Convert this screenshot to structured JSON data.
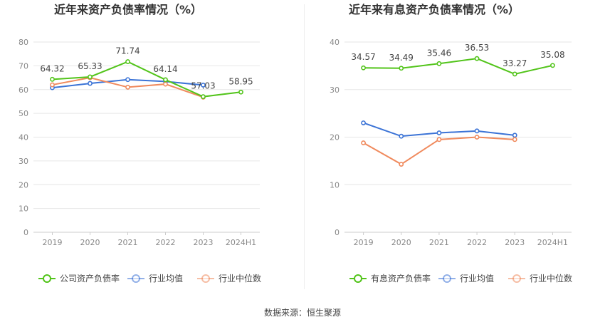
{
  "colors": {
    "company": "#52c41a",
    "industry_avg": "#3b73d6",
    "industry_median": "#f08a5d",
    "grid": "#e6e6e6",
    "axis_text": "#888888",
    "title": "#333333"
  },
  "source_label": "数据来源：恒生聚源",
  "chart_data": [
    {
      "type": "line",
      "title": "近年来资产负债率情况（%）",
      "categories": [
        "2019",
        "2020",
        "2021",
        "2022",
        "2023",
        "2024H1"
      ],
      "ylim": [
        0,
        80
      ],
      "yticks": [
        "0",
        "10",
        "20",
        "30",
        "40",
        "50",
        "60",
        "70",
        "80"
      ],
      "legend_position": "bottom",
      "series": [
        {
          "key": "company",
          "name": "公司资产负债率",
          "values": [
            64.32,
            65.33,
            71.74,
            64.14,
            57.03,
            58.95
          ],
          "labels": [
            "64.32",
            "65.33",
            "71.74",
            "64.14",
            "57.03",
            "58.95"
          ]
        },
        {
          "key": "industry_avg",
          "name": "行业均值",
          "values": [
            60.8,
            62.6,
            64.2,
            63.4,
            61.9,
            null
          ]
        },
        {
          "key": "industry_median",
          "name": "行业中位数",
          "values": [
            62.0,
            65.0,
            61.0,
            62.3,
            56.8,
            null
          ]
        }
      ]
    },
    {
      "type": "line",
      "title": "近年来有息资产负债率情况（%）",
      "categories": [
        "2019",
        "2020",
        "2021",
        "2022",
        "2023",
        "2024H1"
      ],
      "ylim": [
        0,
        40
      ],
      "yticks": [
        "0",
        "10",
        "20",
        "30",
        "40"
      ],
      "legend_position": "bottom",
      "series": [
        {
          "key": "company",
          "name": "有息资产负债率",
          "values": [
            34.57,
            34.49,
            35.46,
            36.53,
            33.27,
            35.08
          ],
          "labels": [
            "34.57",
            "34.49",
            "35.46",
            "36.53",
            "33.27",
            "35.08"
          ]
        },
        {
          "key": "industry_avg",
          "name": "行业均值",
          "values": [
            23.0,
            20.2,
            20.9,
            21.3,
            20.4,
            null
          ]
        },
        {
          "key": "industry_median",
          "name": "行业中位数",
          "values": [
            18.8,
            14.3,
            19.5,
            20.0,
            19.5,
            null
          ]
        }
      ]
    }
  ]
}
